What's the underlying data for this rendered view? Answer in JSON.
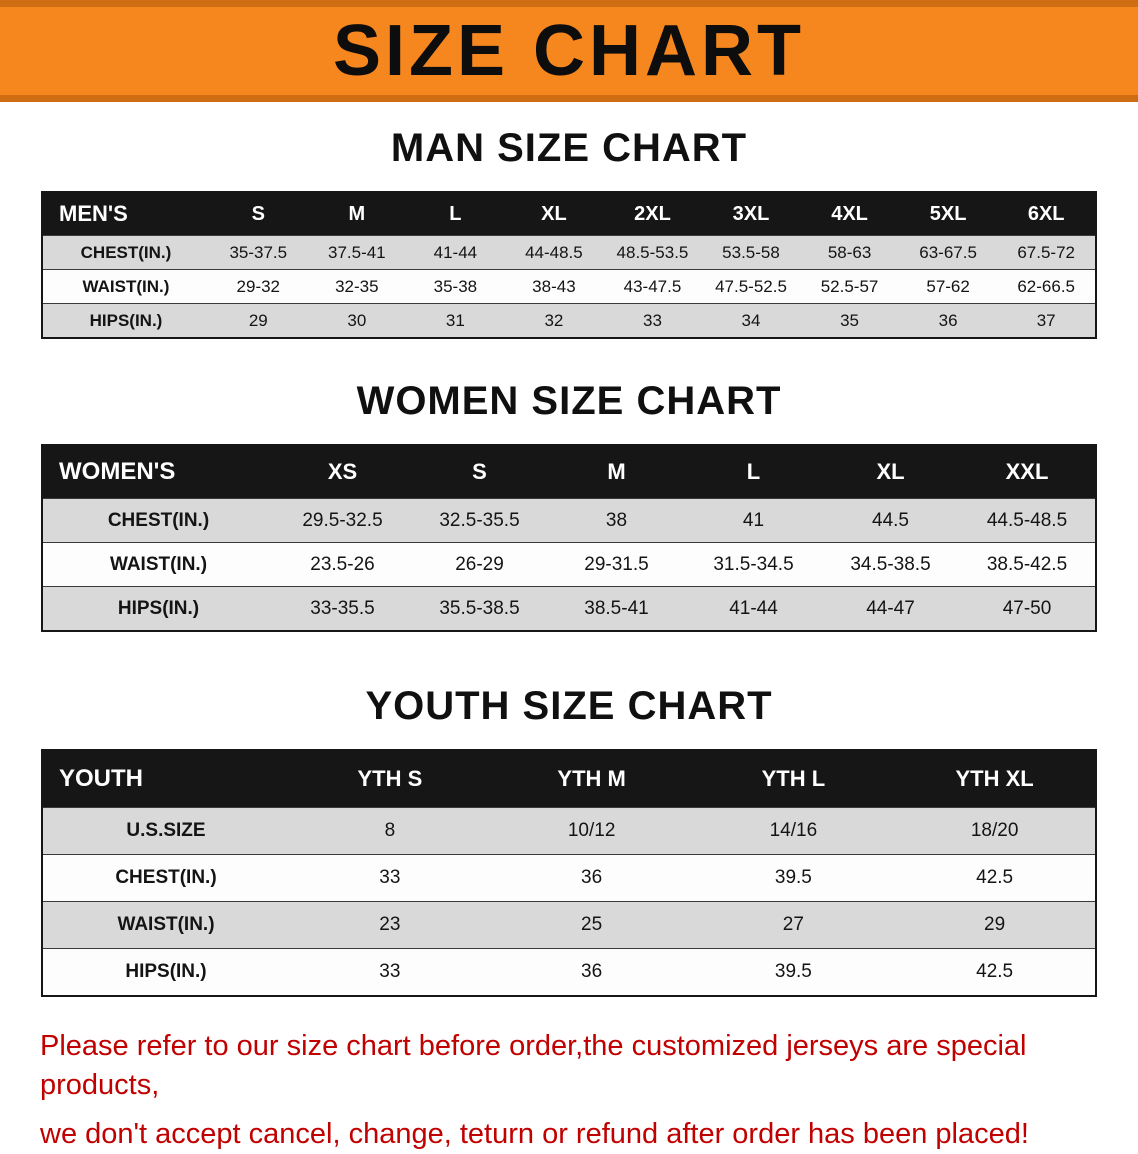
{
  "banner": {
    "title": "SIZE CHART",
    "bg_color": "#f6861e"
  },
  "sections": [
    {
      "id": "mens",
      "heading": "MAN SIZE CHART",
      "header_label": "MEN'S",
      "columns": [
        "S",
        "M",
        "L",
        "XL",
        "2XL",
        "3XL",
        "4XL",
        "5XL",
        "6XL"
      ],
      "rows": [
        {
          "label": "CHEST(IN.)",
          "values": [
            "35-37.5",
            "37.5-41",
            "41-44",
            "44-48.5",
            "48.5-53.5",
            "53.5-58",
            "58-63",
            "63-67.5",
            "67.5-72"
          ]
        },
        {
          "label": "WAIST(IN.)",
          "values": [
            "29-32",
            "32-35",
            "35-38",
            "38-43",
            "43-47.5",
            "47.5-52.5",
            "52.5-57",
            "57-62",
            "62-66.5"
          ]
        },
        {
          "label": "HIPS(IN.)",
          "values": [
            "29",
            "30",
            "31",
            "32",
            "33",
            "34",
            "35",
            "36",
            "37"
          ]
        }
      ]
    },
    {
      "id": "womens",
      "heading": "WOMEN SIZE CHART",
      "header_label": "WOMEN'S",
      "columns": [
        "XS",
        "S",
        "M",
        "L",
        "XL",
        "XXL"
      ],
      "rows": [
        {
          "label": "CHEST(IN.)",
          "values": [
            "29.5-32.5",
            "32.5-35.5",
            "38",
            "41",
            "44.5",
            "44.5-48.5"
          ]
        },
        {
          "label": "WAIST(IN.)",
          "values": [
            "23.5-26",
            "26-29",
            "29-31.5",
            "31.5-34.5",
            "34.5-38.5",
            "38.5-42.5"
          ]
        },
        {
          "label": "HIPS(IN.)",
          "values": [
            "33-35.5",
            "35.5-38.5",
            "38.5-41",
            "41-44",
            "44-47",
            "47-50"
          ]
        }
      ]
    },
    {
      "id": "youth",
      "heading": "YOUTH SIZE CHART",
      "header_label": "YOUTH",
      "columns": [
        "YTH S",
        "YTH M",
        "YTH L",
        "YTH XL"
      ],
      "rows": [
        {
          "label": "U.S.SIZE",
          "values": [
            "8",
            "10/12",
            "14/16",
            "18/20"
          ]
        },
        {
          "label": "CHEST(IN.)",
          "values": [
            "33",
            "36",
            "39.5",
            "42.5"
          ]
        },
        {
          "label": "WAIST(IN.)",
          "values": [
            "23",
            "25",
            "27",
            "29"
          ]
        },
        {
          "label": "HIPS(IN.)",
          "values": [
            "33",
            "36",
            "39.5",
            "42.5"
          ]
        }
      ]
    }
  ],
  "footer": {
    "line1": "Please refer to our size chart before order,the customized jerseys are special products,",
    "line2": "we don't accept cancel, change, teturn or refund after order has been placed!",
    "text_color": "#c10000"
  }
}
